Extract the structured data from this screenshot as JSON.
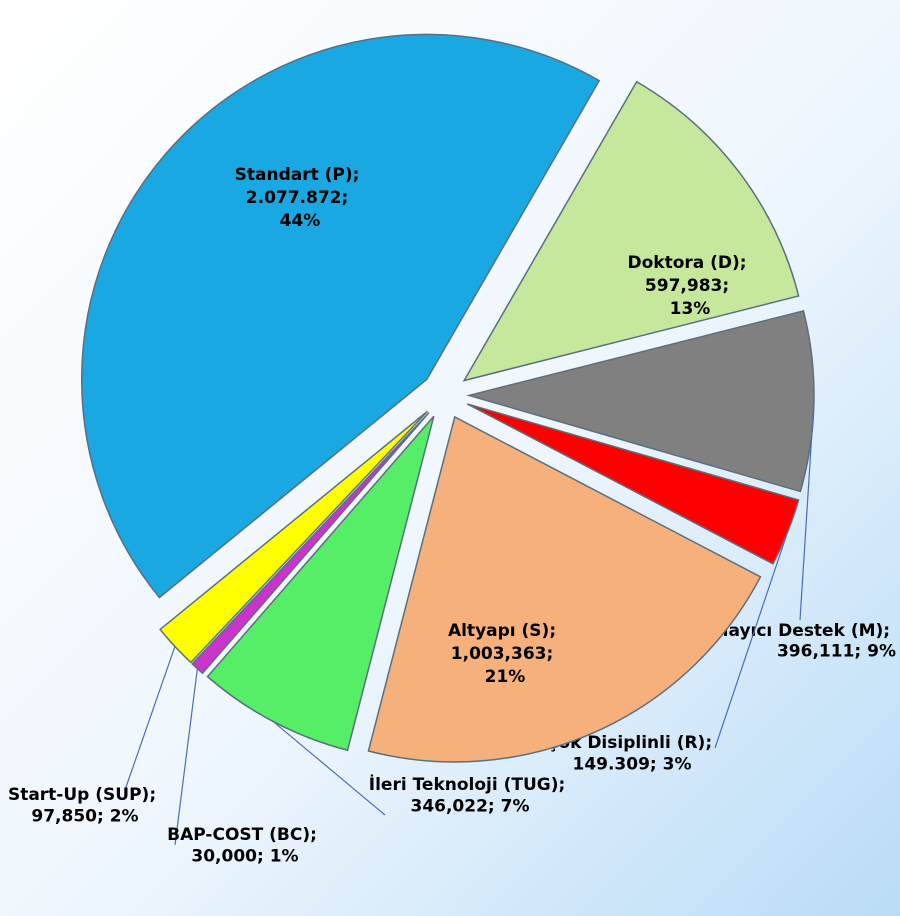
{
  "chart_data": {
    "type": "pie",
    "categories": [
      "Doktora (D)",
      "Tamamlayıcı Destek (M)",
      "Çok Disiplinli (R)",
      "Altyapı (S)",
      "İleri Teknoloji (TUG)",
      "BAP-COST (BC)",
      "Start-Up (SUP)",
      "Standart (P)"
    ],
    "values": [
      597983,
      396111,
      149309,
      1003363,
      346022,
      30000,
      97850,
      2077872
    ],
    "value_labels": [
      "597,983",
      "396,111",
      "149.309",
      "1,003,363",
      "346,022",
      "30,000",
      "97,850",
      "2.077.872"
    ],
    "percents": [
      13,
      9,
      3,
      21,
      7,
      1,
      2,
      44
    ],
    "percent_labels": [
      "13%",
      "9%",
      "3%",
      "21%",
      "7%",
      "1%",
      "2%",
      "44%"
    ],
    "separator": "; ",
    "colors": [
      "#c6e89c",
      "#808080",
      "#ff0000",
      "#f5b07c",
      "#55ee66",
      "#cc33cc",
      "#ffff00",
      "#19a8e2"
    ]
  }
}
